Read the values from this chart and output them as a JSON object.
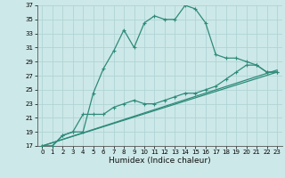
{
  "title": "",
  "xlabel": "Humidex (Indice chaleur)",
  "bg_color": "#cde8e8",
  "grid_color": "#b0d4d4",
  "line_color": "#2e8b7a",
  "xlim": [
    -0.5,
    23.5
  ],
  "ylim": [
    17,
    37
  ],
  "yticks": [
    17,
    19,
    21,
    23,
    25,
    27,
    29,
    31,
    33,
    35,
    37
  ],
  "xticks": [
    0,
    1,
    2,
    3,
    4,
    5,
    6,
    7,
    8,
    9,
    10,
    11,
    12,
    13,
    14,
    15,
    16,
    17,
    18,
    19,
    20,
    21,
    22,
    23
  ],
  "curve1_x": [
    0,
    1,
    2,
    3,
    4,
    5,
    6,
    7,
    8,
    9,
    10,
    11,
    12,
    13,
    14,
    15,
    16,
    17,
    18,
    19,
    20,
    21,
    22,
    23
  ],
  "curve1_y": [
    17.0,
    17.0,
    18.5,
    19.0,
    19.0,
    24.5,
    28.0,
    30.5,
    33.5,
    31.0,
    34.5,
    35.5,
    35.0,
    35.0,
    37.0,
    36.5,
    34.5,
    30.0,
    29.5,
    29.5,
    29.0,
    28.5,
    27.5,
    27.5
  ],
  "curve2_x": [
    0,
    1,
    2,
    3,
    4,
    5,
    6,
    7,
    8,
    9,
    10,
    11,
    12,
    13,
    14,
    15,
    16,
    17,
    18,
    19,
    20,
    21,
    22,
    23
  ],
  "curve2_y": [
    17.0,
    17.0,
    18.5,
    19.0,
    21.5,
    21.5,
    21.5,
    22.5,
    23.0,
    23.5,
    23.0,
    23.0,
    23.5,
    24.0,
    24.5,
    24.5,
    25.0,
    25.5,
    26.5,
    27.5,
    28.5,
    28.5,
    27.5,
    27.5
  ],
  "line1_x": [
    0,
    23
  ],
  "line1_y": [
    17.0,
    27.5
  ],
  "line2_x": [
    0,
    23
  ],
  "line2_y": [
    17.0,
    27.8
  ],
  "xlabel_fontsize": 6.5,
  "tick_fontsize": 5.0
}
